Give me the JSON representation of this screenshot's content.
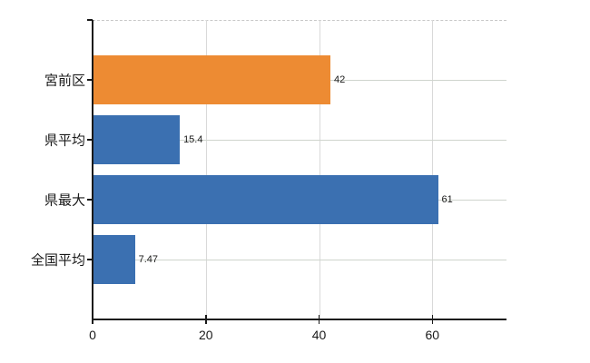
{
  "chart_data": {
    "type": "bar",
    "orientation": "horizontal",
    "title": "",
    "xlabel": "",
    "ylabel": "",
    "categories": [
      "宮前区",
      "県平均",
      "県最大",
      "全国平均"
    ],
    "values": [
      42,
      15.4,
      61,
      7.47
    ],
    "value_labels": [
      "42",
      "15.4",
      "61",
      "7.47"
    ],
    "bar_colors": [
      "#ed8b33",
      "#3b70b1",
      "#3b70b1",
      "#3b70b1"
    ],
    "x_ticks": [
      0,
      20,
      40,
      60
    ],
    "x_tick_labels": [
      "0",
      "20",
      "40",
      "60"
    ],
    "xlim": [
      0,
      73.1
    ],
    "grid": true,
    "legend_position": "none",
    "colors": {
      "highlight_bar": "#ed8b33",
      "default_bar": "#3b70b1",
      "axis": "#1a1a1a",
      "vertical_grid": "#d9d9d9",
      "horizontal_grid": "#cfd4cd",
      "top_border": "#c8c8c8",
      "background": "#ffffff"
    }
  }
}
